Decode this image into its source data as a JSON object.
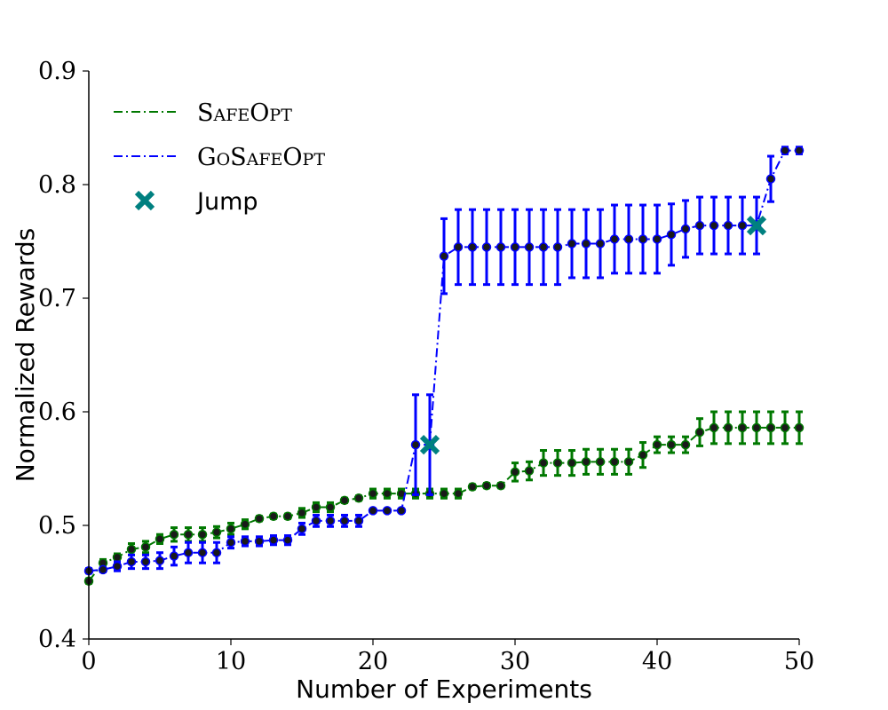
{
  "chart_data": {
    "type": "line",
    "xlabel": "Number of Experiments",
    "ylabel": "Normalized Rewards",
    "xlim": [
      0,
      50
    ],
    "ylim": [
      0.4,
      0.9
    ],
    "xticks": [
      "0",
      "10",
      "20",
      "30",
      "40",
      "50"
    ],
    "yticks": [
      "0.4",
      "0.5",
      "0.6",
      "0.7",
      "0.8",
      "0.9"
    ],
    "grid": false,
    "legend_position": "top-left",
    "legend": [
      "SafeOpt",
      "GoSafeOpt",
      "Jump"
    ],
    "colors": {
      "safeopt": "#007800",
      "gosafeopt": "#0000ff",
      "marker_fill": "#1a1a1a",
      "jump": "#008080"
    },
    "x": [
      0,
      1,
      2,
      3,
      4,
      5,
      6,
      7,
      8,
      9,
      10,
      11,
      12,
      13,
      14,
      15,
      16,
      17,
      18,
      19,
      20,
      21,
      22,
      23,
      24,
      25,
      26,
      27,
      28,
      29,
      30,
      31,
      32,
      33,
      34,
      35,
      36,
      37,
      38,
      39,
      40,
      41,
      42,
      43,
      44,
      45,
      46,
      47,
      48,
      49,
      50
    ],
    "series": [
      {
        "name": "SafeOpt",
        "values": [
          0.451,
          0.467,
          0.472,
          0.479,
          0.481,
          0.488,
          0.492,
          0.492,
          0.492,
          0.494,
          0.497,
          0.501,
          0.506,
          0.508,
          0.508,
          0.511,
          0.516,
          0.516,
          0.522,
          0.524,
          0.528,
          0.528,
          0.528,
          0.528,
          0.528,
          0.528,
          0.528,
          0.534,
          0.535,
          0.535,
          0.547,
          0.548,
          0.555,
          0.555,
          0.555,
          0.556,
          0.556,
          0.556,
          0.556,
          0.562,
          0.571,
          0.571,
          0.571,
          0.582,
          0.586,
          0.586,
          0.586,
          0.586,
          0.586,
          0.586,
          0.586
        ],
        "errors": [
          0.002,
          0.003,
          0.003,
          0.005,
          0.005,
          0.004,
          0.006,
          0.006,
          0.006,
          0.005,
          0.005,
          0.004,
          0.002,
          0.002,
          0.002,
          0.004,
          0.004,
          0.004,
          0.002,
          0.002,
          0.004,
          0.004,
          0.004,
          0.004,
          0.004,
          0.004,
          0.004,
          0.002,
          0.002,
          0.002,
          0.008,
          0.008,
          0.011,
          0.011,
          0.011,
          0.011,
          0.011,
          0.011,
          0.011,
          0.011,
          0.007,
          0.007,
          0.007,
          0.012,
          0.014,
          0.014,
          0.014,
          0.014,
          0.014,
          0.014,
          0.014
        ]
      },
      {
        "name": "GoSafeOpt",
        "values": [
          0.46,
          0.461,
          0.464,
          0.468,
          0.468,
          0.469,
          0.473,
          0.476,
          0.476,
          0.476,
          0.485,
          0.486,
          0.486,
          0.487,
          0.487,
          0.497,
          0.504,
          0.504,
          0.504,
          0.504,
          0.513,
          0.513,
          0.513,
          0.571,
          0.571,
          0.737,
          0.745,
          0.745,
          0.745,
          0.745,
          0.745,
          0.745,
          0.745,
          0.745,
          0.748,
          0.748,
          0.748,
          0.752,
          0.752,
          0.752,
          0.752,
          0.756,
          0.761,
          0.764,
          0.764,
          0.764,
          0.764,
          0.764,
          0.805,
          0.83,
          0.83
        ],
        "errors": [
          0.002,
          0.002,
          0.004,
          0.006,
          0.006,
          0.007,
          0.008,
          0.009,
          0.009,
          0.009,
          0.005,
          0.004,
          0.004,
          0.004,
          0.004,
          0.005,
          0.005,
          0.005,
          0.005,
          0.005,
          0.001,
          0.001,
          0.001,
          0.044,
          0.044,
          0.033,
          0.033,
          0.033,
          0.033,
          0.033,
          0.033,
          0.033,
          0.033,
          0.033,
          0.03,
          0.03,
          0.03,
          0.03,
          0.03,
          0.03,
          0.03,
          0.027,
          0.025,
          0.025,
          0.025,
          0.025,
          0.025,
          0.025,
          0.02,
          0.003,
          0.003
        ]
      }
    ],
    "jump_points": [
      {
        "x": 24,
        "y": 0.571
      },
      {
        "x": 47,
        "y": 0.764
      }
    ]
  }
}
